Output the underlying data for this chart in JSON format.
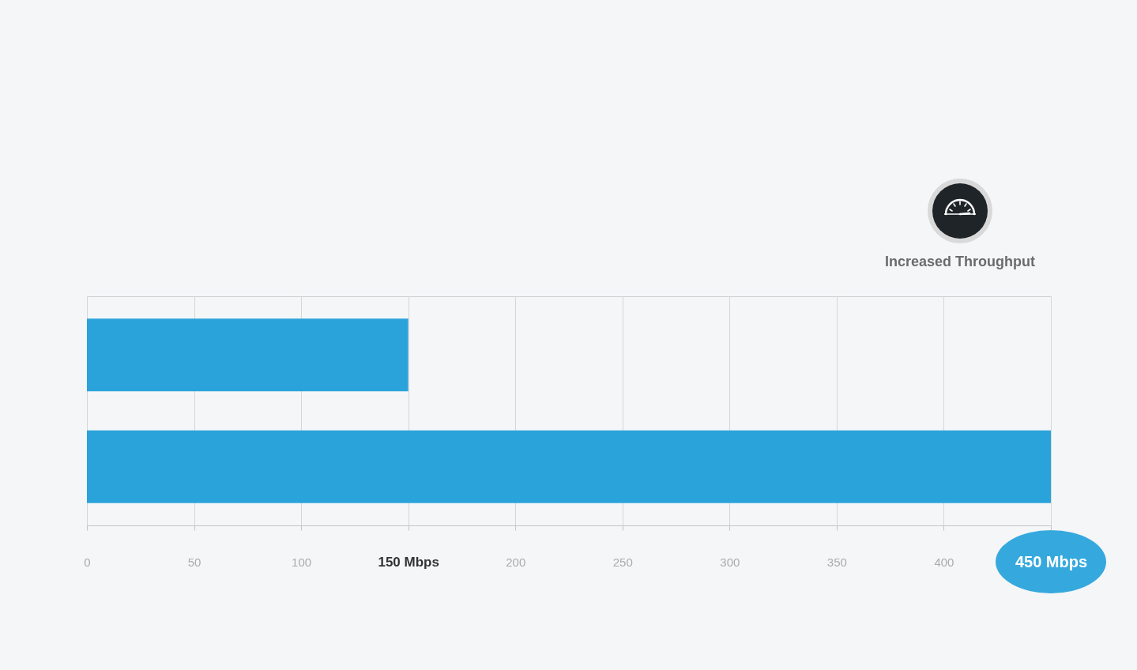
{
  "chart_data": {
    "type": "bar",
    "orientation": "horizontal",
    "categories": [
      null,
      null
    ],
    "values": [
      150,
      450
    ],
    "color": "#2aa3da",
    "xlim": [
      0,
      450
    ],
    "xticks": [
      0,
      50,
      100,
      {
        "value": 150,
        "label": "150 Mbps"
      },
      200,
      250,
      300,
      350,
      400,
      {
        "value": 450,
        "label": "450 Mbps"
      }
    ],
    "grid": "x",
    "tick_labels": "x",
    "annotations": [
      "Increased Throughput"
    ]
  }
}
